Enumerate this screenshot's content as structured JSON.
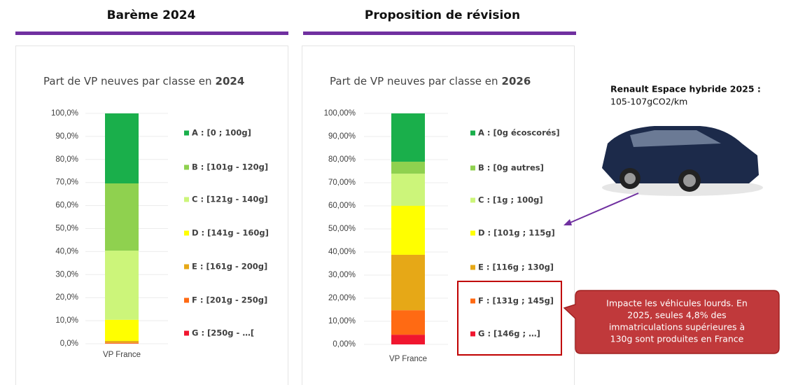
{
  "headers": [
    "Barème 2024",
    "Proposition de révision"
  ],
  "car": {
    "title": "Renault Espace hybride 2025 :",
    "emission": "105-107gCO2/km"
  },
  "callout": [
    "Impacte les véhicules lourds. En",
    "2025, seules 4,8% des",
    "immatriculations supérieures à",
    "130g sont produites en France"
  ],
  "chart_data": [
    {
      "type": "stacked-bar",
      "title": {
        "text": "Part de VP neuves par classe en",
        "bold": "2024"
      },
      "categories": [
        "VP France"
      ],
      "ylim": [
        0,
        100
      ],
      "yticks": [
        {
          "value": 0,
          "label": "0,0%"
        },
        {
          "value": 10,
          "label": "10,0%"
        },
        {
          "value": 20,
          "label": "20,0%"
        },
        {
          "value": 30,
          "label": "30,0%"
        },
        {
          "value": 40,
          "label": "40,0%"
        },
        {
          "value": 50,
          "label": "50,0%"
        },
        {
          "value": 60,
          "label": "60,0%"
        },
        {
          "value": 70,
          "label": "70,0%"
        },
        {
          "value": 80,
          "label": "80,0%"
        },
        {
          "value": 90,
          "label": "90,0%"
        },
        {
          "value": 100,
          "label": "100,0%"
        }
      ],
      "series": [
        {
          "name": "A : [0 ; 100g]",
          "color": "#1aaf4b",
          "values": [
            30.4
          ]
        },
        {
          "name": "B : [101g - 120g]",
          "color": "#8fd14f",
          "values": [
            29.2
          ]
        },
        {
          "name": "C : [121g - 140g]",
          "color": "#ccf57a",
          "values": [
            30.0
          ]
        },
        {
          "name": "D : [141g - 160g]",
          "color": "#ffff00",
          "values": [
            9.2
          ]
        },
        {
          "name": "E : [161g - 200g]",
          "color": "#e6a817",
          "values": [
            0.8
          ]
        },
        {
          "name": "F : [201g - 250g]",
          "color": "#ff6a13",
          "values": [
            0.3
          ]
        },
        {
          "name": "G : [250g - …[",
          "color": "#f0162f",
          "values": [
            0.1
          ]
        }
      ]
    },
    {
      "type": "stacked-bar",
      "title": {
        "text": "Part de VP neuves par classe en",
        "bold": "2026"
      },
      "categories": [
        "VP France"
      ],
      "ylim": [
        0,
        100
      ],
      "yticks": [
        {
          "value": 0,
          "label": "0,00%"
        },
        {
          "value": 10,
          "label": "10,00%"
        },
        {
          "value": 20,
          "label": "20,00%"
        },
        {
          "value": 30,
          "label": "30,00%"
        },
        {
          "value": 40,
          "label": "40,00%"
        },
        {
          "value": 50,
          "label": "50,00%"
        },
        {
          "value": 60,
          "label": "60,00%"
        },
        {
          "value": 70,
          "label": "70,00%"
        },
        {
          "value": 80,
          "label": "80,00%"
        },
        {
          "value": 90,
          "label": "90,00%"
        },
        {
          "value": 100,
          "label": "100,00%"
        }
      ],
      "series": [
        {
          "name": "A : [0g écoscorés]",
          "color": "#1aaf4b",
          "values": [
            20.9
          ]
        },
        {
          "name": "B : [0g autres]",
          "color": "#8fd14f",
          "values": [
            5.2
          ]
        },
        {
          "name": "C : [1g ; 100g]",
          "color": "#ccf57a",
          "values": [
            13.9
          ]
        },
        {
          "name": "D : [101g ; 115g]",
          "color": "#ffff00",
          "values": [
            21.2
          ]
        },
        {
          "name": "E : [116g ; 130g]",
          "color": "#e6a817",
          "values": [
            24.0
          ]
        },
        {
          "name": "F : [131g ; 145g]",
          "color": "#ff6a13",
          "values": [
            10.6
          ]
        },
        {
          "name": "G : [146g ; …]",
          "color": "#f0162f",
          "values": [
            4.2
          ]
        }
      ]
    }
  ]
}
